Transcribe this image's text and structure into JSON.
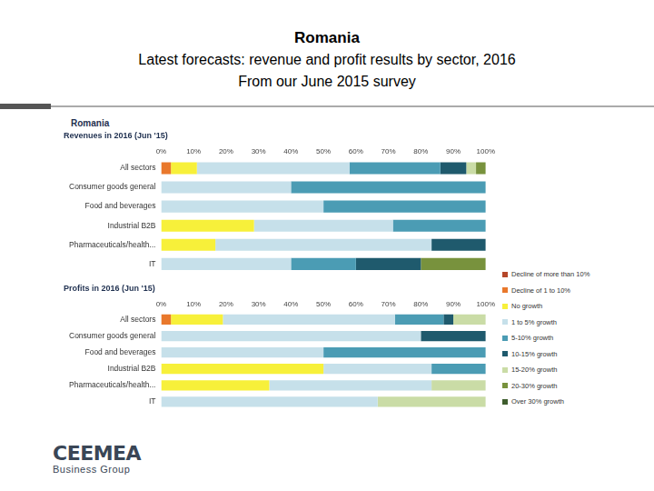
{
  "header": {
    "title": "Romania",
    "lines": [
      "Latest forecasts: revenue and profit results by sector, 2016",
      "From our June 2015 survey"
    ]
  },
  "panel_title": "Romania",
  "logo": {
    "name": "CEEMEA",
    "tagline": "Business Group"
  },
  "chart_data": [
    {
      "type": "bar",
      "title": "Revenues in 2016 (Jun '15)",
      "orientation": "horizontal",
      "stacked": true,
      "grid": false,
      "categories": [
        "All sectors",
        "Consumer goods general",
        "Food and beverages",
        "Industrial B2B",
        "Pharmaceuticals/health...",
        "IT"
      ],
      "xlim": [
        0,
        100
      ],
      "xticks": [
        {
          "value": 0,
          "label": "0%"
        },
        {
          "value": 10,
          "label": "10%"
        },
        {
          "value": 20,
          "label": "20%"
        },
        {
          "value": 30,
          "label": "30%"
        },
        {
          "value": 40,
          "label": "40%"
        },
        {
          "value": 50,
          "label": "50%"
        },
        {
          "value": 60,
          "label": "60%"
        },
        {
          "value": 70,
          "label": "70%"
        },
        {
          "value": 80,
          "label": "80%"
        },
        {
          "value": 90,
          "label": "90%"
        },
        {
          "value": 100,
          "label": "100%"
        }
      ],
      "series": [
        {
          "name": "Decline of more than 10%",
          "color": "#b5472a",
          "values": [
            0,
            0,
            0,
            0,
            0,
            0
          ]
        },
        {
          "name": "Decline of 1 to 10%",
          "color": "#e9782c",
          "values": [
            3,
            0,
            0,
            0,
            0,
            0
          ]
        },
        {
          "name": "No growth",
          "color": "#f7f03a",
          "values": [
            8,
            0,
            0,
            28.6,
            16.7,
            0
          ]
        },
        {
          "name": "1 to 5% growth",
          "color": "#c6e0ea",
          "values": [
            47,
            40,
            50,
            42.8,
            66.6,
            40
          ]
        },
        {
          "name": "5-10% growth",
          "color": "#4b9cb4",
          "values": [
            28,
            60,
            50,
            28.6,
            0,
            20
          ]
        },
        {
          "name": "10-15% growth",
          "color": "#1f5a6d",
          "values": [
            8,
            0,
            0,
            0,
            16.7,
            20
          ]
        },
        {
          "name": "15-20% growth",
          "color": "#cadca6",
          "values": [
            3,
            0,
            0,
            0,
            0,
            0
          ]
        },
        {
          "name": "20-30% growth",
          "color": "#78923d",
          "values": [
            3,
            0,
            0,
            0,
            0,
            20
          ]
        },
        {
          "name": "Over 30% growth",
          "color": "#3e5d2e",
          "values": [
            0,
            0,
            0,
            0,
            0,
            0
          ]
        }
      ]
    },
    {
      "type": "bar",
      "title": "Profits in 2016 (Jun '15)",
      "orientation": "horizontal",
      "stacked": true,
      "grid": false,
      "legend": "right",
      "categories": [
        "All sectors",
        "Consumer goods general",
        "Food and beverages",
        "Industrial B2B",
        "Pharmaceuticals/health...",
        "IT"
      ],
      "xlim": [
        0,
        100
      ],
      "xticks": [
        {
          "value": 0,
          "label": "0%"
        },
        {
          "value": 10,
          "label": "10%"
        },
        {
          "value": 20,
          "label": "20%"
        },
        {
          "value": 30,
          "label": "30%"
        },
        {
          "value": 40,
          "label": "40%"
        },
        {
          "value": 50,
          "label": "50%"
        },
        {
          "value": 60,
          "label": "60%"
        },
        {
          "value": 70,
          "label": "70%"
        },
        {
          "value": 80,
          "label": "80%"
        },
        {
          "value": 90,
          "label": "90%"
        },
        {
          "value": 100,
          "label": "100%"
        }
      ],
      "series": [
        {
          "name": "Decline of more than 10%",
          "color": "#b5472a",
          "values": [
            0,
            0,
            0,
            0,
            0,
            0
          ]
        },
        {
          "name": "Decline of 1 to 10%",
          "color": "#e9782c",
          "values": [
            3,
            0,
            0,
            0,
            0,
            0
          ]
        },
        {
          "name": "No growth",
          "color": "#f7f03a",
          "values": [
            16,
            0,
            0,
            50,
            33.3,
            0
          ]
        },
        {
          "name": "1 to 5% growth",
          "color": "#c6e0ea",
          "values": [
            53,
            80,
            50,
            33.3,
            50,
            66.7
          ]
        },
        {
          "name": "5-10% growth",
          "color": "#4b9cb4",
          "values": [
            15,
            0,
            50,
            16.7,
            0,
            0
          ]
        },
        {
          "name": "10-15% growth",
          "color": "#1f5a6d",
          "values": [
            3,
            20,
            0,
            0,
            0,
            0
          ]
        },
        {
          "name": "15-20% growth",
          "color": "#cadca6",
          "values": [
            10,
            0,
            0,
            0,
            16.7,
            33.3
          ]
        },
        {
          "name": "20-30% growth",
          "color": "#78923d",
          "values": [
            0,
            0,
            0,
            0,
            0,
            0
          ]
        },
        {
          "name": "Over 30% growth",
          "color": "#3e5d2e",
          "values": [
            0,
            0,
            0,
            0,
            0,
            0
          ]
        }
      ]
    }
  ]
}
